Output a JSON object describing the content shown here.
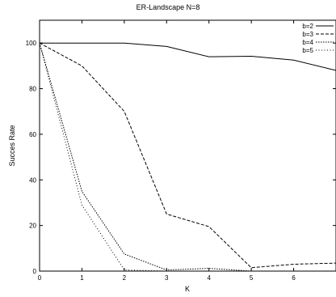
{
  "chart_data": {
    "type": "line",
    "title": "ER-Landscape N=8",
    "xlabel": "K",
    "ylabel": "Succes Rate",
    "xlim": [
      0,
      7
    ],
    "ylim": [
      0,
      110
    ],
    "xticks": [
      "0",
      "1",
      "2",
      "3",
      "4",
      "5",
      "6"
    ],
    "yticks": [
      "0",
      "20",
      "40",
      "60",
      "80",
      "100"
    ],
    "grid": false,
    "legend_position": "top-right",
    "series": [
      {
        "name": "b=2",
        "dash": "none",
        "x": [
          0,
          1,
          2,
          3,
          4,
          5,
          6,
          7
        ],
        "y": [
          100,
          100,
          100,
          98.5,
          94,
          94.2,
          92.5,
          88
        ]
      },
      {
        "name": "b=3",
        "dash": "4,2",
        "x": [
          0,
          1,
          2,
          3,
          4,
          5,
          6,
          7
        ],
        "y": [
          100,
          90,
          70,
          25,
          19.5,
          1.5,
          3,
          3.5
        ]
      },
      {
        "name": "b=4",
        "dash": "1.5,1.5",
        "x": [
          0,
          1,
          2,
          3,
          4,
          5,
          6,
          7
        ],
        "y": [
          100,
          35,
          7.5,
          0.5,
          1.2,
          0,
          0,
          0
        ]
      },
      {
        "name": "b=5",
        "dash": "1,2.5",
        "x": [
          0,
          1,
          2,
          3,
          4,
          5,
          6,
          7
        ],
        "y": [
          100,
          29,
          0.5,
          0,
          0,
          0,
          0,
          0
        ]
      }
    ]
  }
}
